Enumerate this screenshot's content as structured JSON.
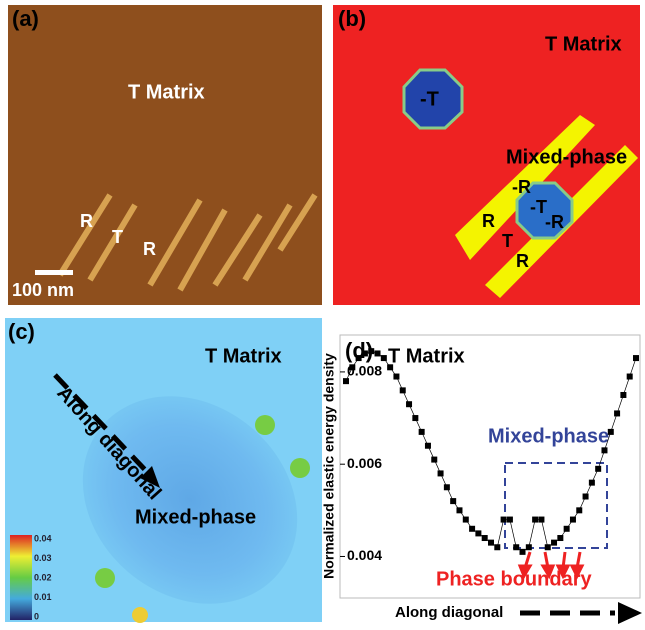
{
  "panels": {
    "a": {
      "label": "(a)",
      "matrix": "T Matrix",
      "r1": "R",
      "t": "T",
      "r2": "R",
      "scale": "100 nm"
    },
    "b": {
      "label": "(b)",
      "matrix": "T Matrix",
      "minus_t": "-T",
      "mixed": "Mixed-phase",
      "minus_r1": "-R",
      "minus_t2": "-T",
      "minus_r2": "-R",
      "r1": "R",
      "t": "T",
      "r2": "R"
    },
    "c": {
      "label": "(c)",
      "matrix": "T Matrix",
      "direction": "Along diagonal",
      "mixed": "Mixed-phase",
      "colorbar_ticks": [
        0.04,
        0.03,
        0.02,
        0.01,
        0
      ]
    }
  },
  "chart_data": {
    "type": "line",
    "label": "(d)",
    "matrix": "T Matrix",
    "mixed": "Mixed-phase",
    "boundary": "Phase boundary",
    "ylabel": "Normalized elastic energy density",
    "xlabel": "Along diagonal",
    "color": "#000000",
    "values": [
      0.0078,
      0.0081,
      0.0083,
      0.0084,
      0.00845,
      0.0084,
      0.0083,
      0.0081,
      0.0079,
      0.0076,
      0.0073,
      0.007,
      0.0067,
      0.0064,
      0.0061,
      0.0058,
      0.0055,
      0.0052,
      0.005,
      0.0048,
      0.0046,
      0.0045,
      0.0044,
      0.0043,
      0.0042,
      0.0048,
      0.0048,
      0.0042,
      0.0041,
      0.0042,
      0.0048,
      0.0048,
      0.0042,
      0.0043,
      0.0044,
      0.0046,
      0.0048,
      0.005,
      0.0053,
      0.0056,
      0.0059,
      0.0063,
      0.0067,
      0.0071,
      0.0075,
      0.0079,
      0.0083
    ],
    "ylim": [
      0.0031,
      0.0088
    ],
    "yticks": [
      0.004,
      0.006,
      0.008
    ]
  }
}
